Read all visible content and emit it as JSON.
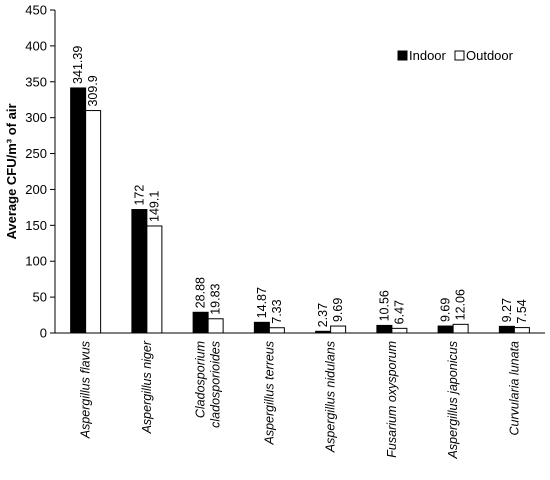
{
  "chart_data": {
    "type": "bar",
    "title": "",
    "xlabel": "",
    "ylabel": "Average CFU/m³ of air",
    "ylim": [
      0,
      450
    ],
    "yticks": [
      0,
      50,
      100,
      150,
      200,
      250,
      300,
      350,
      400,
      450
    ],
    "grid": false,
    "legend_position": "top-right",
    "categories": [
      [
        "Aspergillus flavus"
      ],
      [
        "Aspergillus niger"
      ],
      [
        "Cladosporium",
        "cladosporioides"
      ],
      [
        "Aspergillus terreus"
      ],
      [
        "Aspergillus nidulans"
      ],
      [
        "Fusarium oxysporum"
      ],
      [
        "Aspergillus japonicus"
      ],
      [
        "Curvularia  lunata"
      ]
    ],
    "series": [
      {
        "name": "Indoor",
        "color": "#000000",
        "values": [
          341.39,
          172,
          28.88,
          14.87,
          2.37,
          10.56,
          9.69,
          9.27
        ],
        "labels": [
          "341.39",
          "172",
          "28.88",
          "14.87",
          "2.37",
          "10.56",
          "9.69",
          "9.27"
        ]
      },
      {
        "name": "Outdoor",
        "color": "#ffffff",
        "values": [
          309.9,
          149.1,
          19.83,
          7.33,
          9.69,
          6.47,
          12.06,
          7.54
        ],
        "labels": [
          "309.9",
          "149.1",
          "19.83",
          "7.33",
          "9.69",
          "6.47",
          "12.06",
          "7.54"
        ]
      }
    ]
  }
}
